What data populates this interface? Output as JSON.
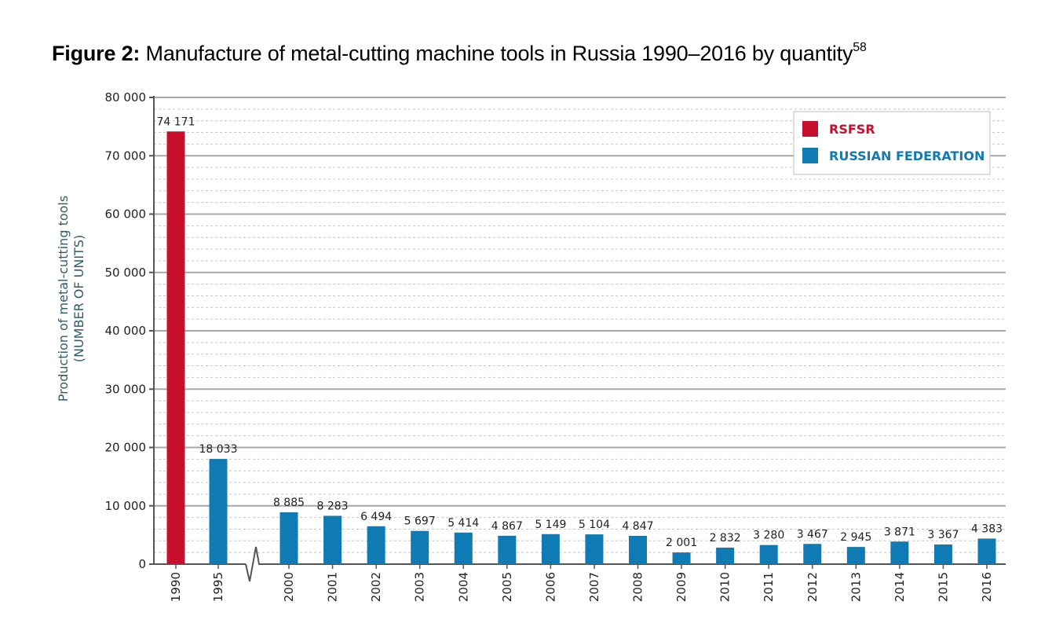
{
  "figure": {
    "lead": "Figure 2:",
    "title": "Manufacture of metal-cutting machine tools in Russia 1990–2016 by quantity",
    "footnote": "58"
  },
  "chart_data": {
    "type": "bar",
    "ylabel_line1": "Production of metal-cutting tools",
    "ylabel_line2": "(NUMBER OF UNITS)",
    "ylim": [
      0,
      80000
    ],
    "yticks": [
      0,
      10000,
      20000,
      30000,
      40000,
      50000,
      60000,
      70000,
      80000
    ],
    "ytick_labels": [
      "0",
      "10 000",
      "20 000",
      "30 000",
      "40 000",
      "50 000",
      "60 000",
      "70 000",
      "80 000"
    ],
    "grid": true,
    "axis_break": "between 1995 and 2000",
    "categories": [
      "1990",
      "1995",
      "2000",
      "2001",
      "2002",
      "2003",
      "2004",
      "2005",
      "2006",
      "2007",
      "2008",
      "2009",
      "2010",
      "2011",
      "2012",
      "2013",
      "2014",
      "2015",
      "2016"
    ],
    "values": [
      74171,
      18033,
      8885,
      8283,
      6494,
      5697,
      5414,
      4867,
      5149,
      5104,
      4847,
      2001,
      2832,
      3280,
      3467,
      2945,
      3871,
      3367,
      4383
    ],
    "value_labels": [
      "74 171",
      "18 033",
      "8 885",
      "8 283",
      "6 494",
      "5 697",
      "5 414",
      "4 867",
      "5 149",
      "5 104",
      "4 847",
      "2 001",
      "2 832",
      "3 280",
      "3 467",
      "2 945",
      "3 871",
      "3 367",
      "4 383"
    ],
    "series_index": [
      0,
      1,
      1,
      1,
      1,
      1,
      1,
      1,
      1,
      1,
      1,
      1,
      1,
      1,
      1,
      1,
      1,
      1,
      1
    ],
    "series": [
      {
        "name": "RSFSR",
        "color": "#c8102e"
      },
      {
        "name": "RUSSIAN FEDERATION",
        "color": "#0f7ab4"
      }
    ],
    "legend_position": "top-right"
  }
}
